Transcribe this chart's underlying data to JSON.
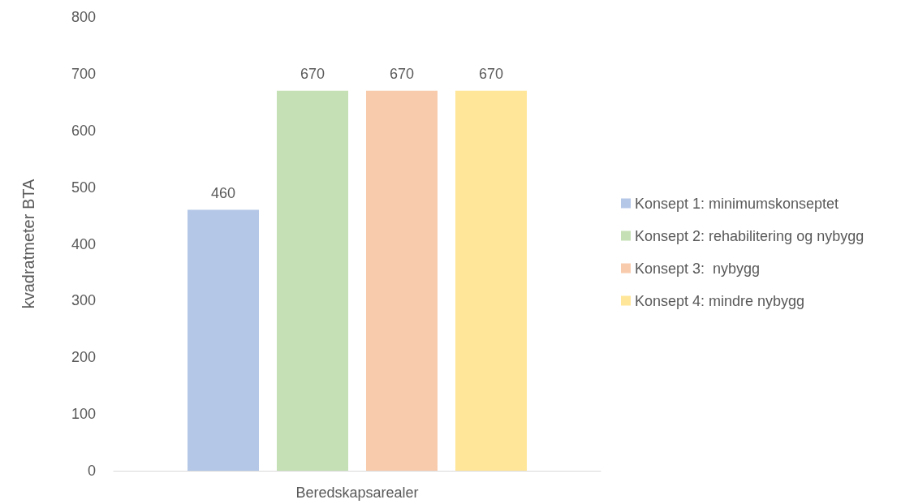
{
  "chart_data": {
    "type": "bar",
    "ylabel": "kvadratmeter BTA",
    "categories": [
      "Beredskapsarealer"
    ],
    "series": [
      {
        "name": "Konsept 1: minimumskonseptet",
        "color": "#b4c7e7",
        "values": [
          460
        ]
      },
      {
        "name": "Konsept 2: rehabilitering og nybygg",
        "color": "#c5e0b4",
        "values": [
          670
        ]
      },
      {
        "name": "Konsept 3:  nybygg",
        "color": "#f8cbad",
        "values": [
          670
        ]
      },
      {
        "name": "Konsept 4: mindre nybygg",
        "color": "#ffe699",
        "values": [
          670
        ]
      }
    ],
    "ylim": [
      0,
      800
    ],
    "yticks": [
      0,
      100,
      200,
      300,
      400,
      500,
      600,
      700,
      800
    ],
    "grid": false,
    "legend": "right",
    "data_labels": true
  }
}
